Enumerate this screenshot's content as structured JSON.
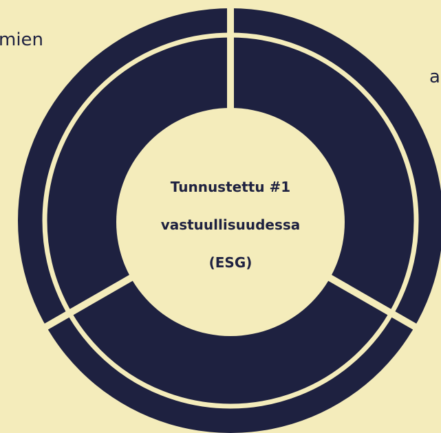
{
  "left_text": "mien",
  "right_text": "a",
  "center": {
    "lines": [
      "Tunnustettu #1",
      "vastuullisuudessa",
      "(ESG)"
    ]
  }
}
